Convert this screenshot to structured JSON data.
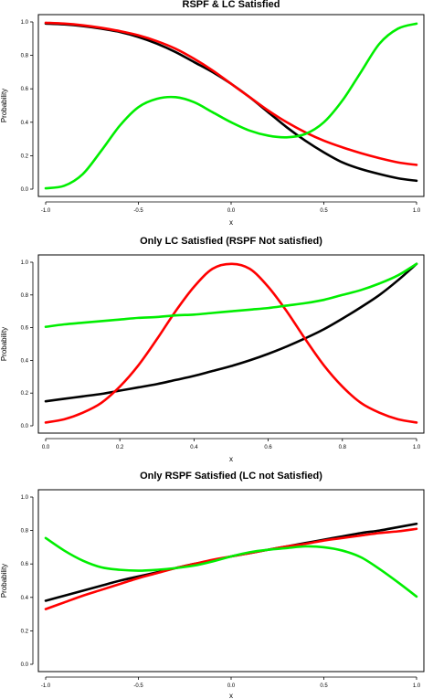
{
  "chart_data": [
    {
      "type": "line",
      "title": "RSPF & LC Satisfied",
      "xlabel": "x",
      "ylabel": "Probability",
      "xlim": [
        -1.0,
        1.0
      ],
      "ylim": [
        0.0,
        1.0
      ],
      "x_ticks": [
        "-1.0",
        "-0.5",
        "0.0",
        "0.5",
        "1.0"
      ],
      "y_ticks": [
        "0.0",
        "0.2",
        "0.4",
        "0.6",
        "0.8",
        "1.0"
      ],
      "grid": false,
      "series": [
        {
          "color": "#000000",
          "x": [
            -1.0,
            -0.9,
            -0.8,
            -0.7,
            -0.6,
            -0.5,
            -0.4,
            -0.3,
            -0.2,
            -0.1,
            0.0,
            0.1,
            0.2,
            0.3,
            0.4,
            0.5,
            0.6,
            0.7,
            0.8,
            0.9,
            1.0
          ],
          "values": [
            0.99,
            0.985,
            0.975,
            0.96,
            0.94,
            0.91,
            0.87,
            0.82,
            0.76,
            0.7,
            0.63,
            0.55,
            0.46,
            0.37,
            0.29,
            0.22,
            0.16,
            0.12,
            0.09,
            0.065,
            0.05
          ]
        },
        {
          "color": "#ff0000",
          "x": [
            -1.0,
            -0.9,
            -0.8,
            -0.7,
            -0.6,
            -0.5,
            -0.4,
            -0.3,
            -0.2,
            -0.1,
            0.0,
            0.1,
            0.2,
            0.3,
            0.4,
            0.5,
            0.6,
            0.7,
            0.8,
            0.9,
            1.0
          ],
          "values": [
            0.995,
            0.99,
            0.98,
            0.965,
            0.945,
            0.92,
            0.885,
            0.84,
            0.78,
            0.71,
            0.63,
            0.55,
            0.47,
            0.4,
            0.34,
            0.29,
            0.25,
            0.215,
            0.185,
            0.16,
            0.145
          ]
        },
        {
          "color": "#00ee00",
          "x": [
            -1.0,
            -0.9,
            -0.8,
            -0.7,
            -0.6,
            -0.5,
            -0.4,
            -0.3,
            -0.2,
            -0.1,
            0.0,
            0.1,
            0.2,
            0.3,
            0.4,
            0.5,
            0.6,
            0.7,
            0.8,
            0.9,
            1.0
          ],
          "values": [
            0.005,
            0.02,
            0.09,
            0.23,
            0.38,
            0.49,
            0.54,
            0.55,
            0.52,
            0.46,
            0.4,
            0.35,
            0.32,
            0.31,
            0.33,
            0.4,
            0.53,
            0.7,
            0.87,
            0.96,
            0.99
          ]
        }
      ]
    },
    {
      "type": "line",
      "title": "Only LC Satisfied (RSPF Not satisfied)",
      "xlabel": "x",
      "ylabel": "Probability",
      "xlim": [
        0.0,
        1.0
      ],
      "ylim": [
        0.0,
        1.0
      ],
      "x_ticks": [
        "0.0",
        "0.2",
        "0.4",
        "0.6",
        "0.8",
        "1.0"
      ],
      "y_ticks": [
        "0.0",
        "0.2",
        "0.4",
        "0.6",
        "0.8",
        "1.0"
      ],
      "grid": false,
      "series": [
        {
          "color": "#000000",
          "x": [
            0.0,
            0.05,
            0.1,
            0.15,
            0.2,
            0.25,
            0.3,
            0.35,
            0.4,
            0.45,
            0.5,
            0.55,
            0.6,
            0.65,
            0.7,
            0.75,
            0.8,
            0.85,
            0.9,
            0.95,
            1.0
          ],
          "values": [
            0.15,
            0.165,
            0.18,
            0.195,
            0.215,
            0.235,
            0.255,
            0.28,
            0.305,
            0.335,
            0.365,
            0.4,
            0.44,
            0.485,
            0.535,
            0.59,
            0.655,
            0.725,
            0.8,
            0.89,
            0.99
          ]
        },
        {
          "color": "#ff0000",
          "x": [
            0.0,
            0.05,
            0.1,
            0.15,
            0.2,
            0.25,
            0.3,
            0.35,
            0.4,
            0.45,
            0.5,
            0.55,
            0.6,
            0.65,
            0.7,
            0.75,
            0.8,
            0.85,
            0.9,
            0.95,
            1.0
          ],
          "values": [
            0.02,
            0.04,
            0.08,
            0.14,
            0.24,
            0.37,
            0.53,
            0.7,
            0.85,
            0.96,
            0.99,
            0.96,
            0.85,
            0.7,
            0.53,
            0.37,
            0.24,
            0.14,
            0.08,
            0.04,
            0.02
          ]
        },
        {
          "color": "#00ee00",
          "x": [
            0.0,
            0.05,
            0.1,
            0.15,
            0.2,
            0.25,
            0.3,
            0.35,
            0.4,
            0.45,
            0.5,
            0.55,
            0.6,
            0.65,
            0.7,
            0.75,
            0.8,
            0.85,
            0.9,
            0.95,
            1.0
          ],
          "values": [
            0.605,
            0.62,
            0.63,
            0.64,
            0.65,
            0.66,
            0.665,
            0.675,
            0.68,
            0.69,
            0.7,
            0.71,
            0.72,
            0.735,
            0.75,
            0.77,
            0.8,
            0.83,
            0.87,
            0.92,
            0.99
          ]
        }
      ]
    },
    {
      "type": "line",
      "title": "Only RSPF Satisfied (LC not Satisfied)",
      "xlabel": "x",
      "ylabel": "Probability",
      "xlim": [
        -1.0,
        1.0
      ],
      "ylim": [
        0.0,
        1.0
      ],
      "x_ticks": [
        "-1.0",
        "-0.5",
        "0.0",
        "0.5",
        "1.0"
      ],
      "y_ticks": [
        "0.0",
        "0.2",
        "0.4",
        "0.6",
        "0.8",
        "1.0"
      ],
      "grid": false,
      "series": [
        {
          "color": "#000000",
          "x": [
            -1.0,
            -0.9,
            -0.8,
            -0.7,
            -0.6,
            -0.5,
            -0.4,
            -0.3,
            -0.2,
            -0.1,
            0.0,
            0.1,
            0.2,
            0.3,
            0.4,
            0.5,
            0.6,
            0.7,
            0.8,
            0.9,
            1.0
          ],
          "values": [
            0.38,
            0.41,
            0.44,
            0.47,
            0.5,
            0.525,
            0.55,
            0.575,
            0.6,
            0.62,
            0.645,
            0.665,
            0.685,
            0.705,
            0.725,
            0.745,
            0.765,
            0.785,
            0.8,
            0.82,
            0.84
          ]
        },
        {
          "color": "#ff0000",
          "x": [
            -1.0,
            -0.9,
            -0.8,
            -0.7,
            -0.6,
            -0.5,
            -0.4,
            -0.3,
            -0.2,
            -0.1,
            0.0,
            0.1,
            0.2,
            0.3,
            0.4,
            0.5,
            0.6,
            0.7,
            0.8,
            0.9,
            1.0
          ],
          "values": [
            0.33,
            0.37,
            0.41,
            0.445,
            0.48,
            0.515,
            0.545,
            0.575,
            0.6,
            0.625,
            0.645,
            0.665,
            0.685,
            0.705,
            0.72,
            0.74,
            0.755,
            0.77,
            0.785,
            0.795,
            0.81
          ]
        },
        {
          "color": "#00ee00",
          "x": [
            -1.0,
            -0.9,
            -0.8,
            -0.7,
            -0.6,
            -0.5,
            -0.4,
            -0.3,
            -0.2,
            -0.1,
            0.0,
            0.1,
            0.2,
            0.3,
            0.4,
            0.5,
            0.6,
            0.7,
            0.8,
            0.9,
            1.0
          ],
          "values": [
            0.755,
            0.68,
            0.62,
            0.58,
            0.565,
            0.56,
            0.565,
            0.575,
            0.59,
            0.615,
            0.645,
            0.67,
            0.685,
            0.695,
            0.705,
            0.7,
            0.68,
            0.64,
            0.57,
            0.49,
            0.405
          ]
        }
      ]
    }
  ]
}
